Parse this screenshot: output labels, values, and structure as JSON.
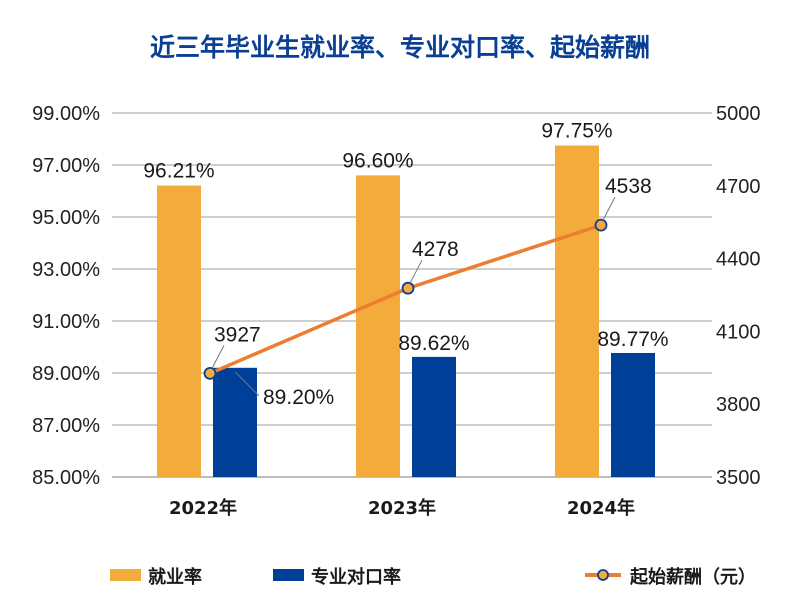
{
  "chart_data": {
    "type": "bar",
    "title": "近三年毕业生就业率、专业对口率、起始薪酬",
    "categories": [
      "2022年",
      "2023年",
      "2024年"
    ],
    "series": [
      {
        "name": "就业率",
        "type": "bar",
        "axis": "left",
        "values": [
          96.21,
          96.6,
          97.75
        ],
        "labels": [
          "96.21%",
          "96.60%",
          "97.75%"
        ],
        "color": "#F3AC3C"
      },
      {
        "name": "专业对口率",
        "type": "bar",
        "axis": "left",
        "values": [
          89.2,
          89.62,
          89.77
        ],
        "labels": [
          "89.20%",
          "89.62%",
          "89.77%"
        ],
        "color": "#003F98"
      },
      {
        "name": "起始薪酬（元）",
        "type": "line",
        "axis": "right",
        "values": [
          3927,
          4278,
          4538
        ],
        "labels": [
          "3927",
          "4278",
          "4538"
        ],
        "color": "#ED7D31",
        "marker_fill": "#F3AC3C",
        "marker_stroke": "#0A3F93"
      }
    ],
    "left_axis": {
      "ylim": [
        85,
        99
      ],
      "ticks": [
        99,
        97,
        95,
        93,
        91,
        89,
        87,
        85
      ],
      "tick_labels": [
        "99.00%",
        "97.00%",
        "95.00%",
        "93.00%",
        "91.00%",
        "89.00%",
        "87.00%",
        "85.00%"
      ]
    },
    "right_axis": {
      "ylim": [
        3500,
        5000
      ],
      "ticks": [
        5000,
        4700,
        4400,
        4100,
        3800,
        3500
      ],
      "tick_labels": [
        "5000",
        "4700",
        "4400",
        "4100",
        "3800",
        "3500"
      ]
    },
    "grid": true,
    "legend": {
      "position": "bottom",
      "items": [
        "就业率",
        "专业对口率",
        "起始薪酬（元）"
      ]
    },
    "xlabel": "",
    "ylabel": ""
  }
}
